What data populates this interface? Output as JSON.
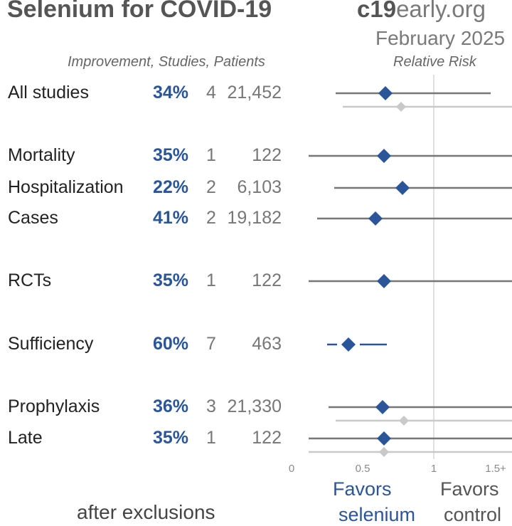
{
  "header": {
    "title": "Selenium for COVID-19",
    "brand_bold": "c19",
    "brand_rest": "early.org",
    "date": "February 2025",
    "columns_label": "Improvement, Studies, Patients",
    "risk_label": "Relative Risk"
  },
  "colors": {
    "accent": "#2a5599",
    "primary_line": "#777777",
    "secondary": "#c9c9c9",
    "reference": "#e0e0e0"
  },
  "chart_data": {
    "type": "forest",
    "title": "Selenium for COVID-19",
    "xlabel": "Relative Risk",
    "xlim": [
      0,
      1.5
    ],
    "xticks": [
      0,
      0.5,
      1
    ],
    "xtick_labels": [
      "0",
      "0.5",
      "1",
      "1.5+"
    ],
    "reference_line": 1,
    "rows": [
      {
        "label": "All studies",
        "improvement": "34%",
        "studies": "4",
        "patients": "21,452",
        "rr": 0.66,
        "ci": [
          0.31,
          1.4
        ],
        "excl_rr": 0.77,
        "excl_ci": [
          0.36,
          1.6
        ]
      },
      {
        "label": "Mortality",
        "improvement": "35%",
        "studies": "1",
        "patients": "122",
        "rr": 0.65,
        "ci": [
          0.12,
          1.6
        ]
      },
      {
        "label": "Hospitalization",
        "improvement": "22%",
        "studies": "2",
        "patients": "6,103",
        "rr": 0.78,
        "ci": [
          0.3,
          1.6
        ]
      },
      {
        "label": "Cases",
        "improvement": "41%",
        "studies": "2",
        "patients": "19,182",
        "rr": 0.59,
        "ci": [
          0.18,
          1.6
        ]
      },
      {
        "label": "RCTs",
        "improvement": "35%",
        "studies": "1",
        "patients": "122",
        "rr": 0.65,
        "ci": [
          0.12,
          1.6
        ]
      },
      {
        "label": "Sufficiency",
        "improvement": "60%",
        "studies": "7",
        "patients": "463",
        "rr": 0.4,
        "ci": [
          0.25,
          0.67
        ]
      },
      {
        "label": "Prophylaxis",
        "improvement": "36%",
        "studies": "3",
        "patients": "21,330",
        "rr": 0.64,
        "ci": [
          0.26,
          1.6
        ],
        "excl_rr": 0.79,
        "excl_ci": [
          0.31,
          1.6
        ]
      },
      {
        "label": "Late",
        "improvement": "35%",
        "studies": "1",
        "patients": "122",
        "rr": 0.65,
        "ci": [
          0.12,
          1.6
        ],
        "excl_rr": 0.65,
        "excl_ci": [
          0.12,
          1.6
        ]
      }
    ]
  },
  "footer": {
    "favors_left": "Favors",
    "favors_left_2": "selenium",
    "favors_right": "Favors",
    "favors_right_2": "control",
    "note": "after exclusions"
  }
}
